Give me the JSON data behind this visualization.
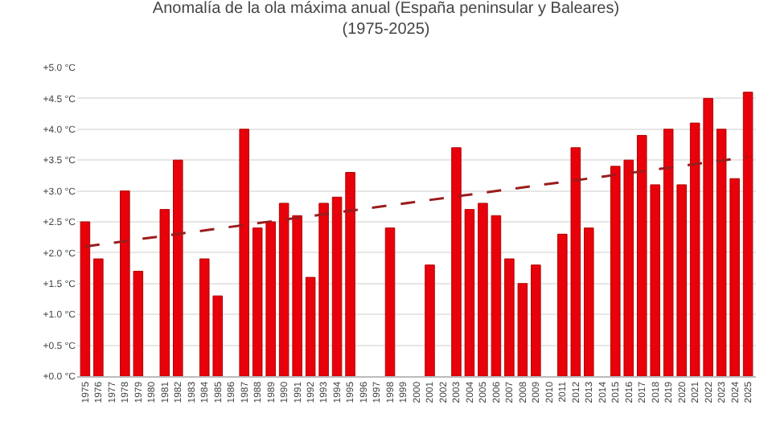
{
  "chart_data": {
    "type": "bar",
    "title": "Anomalía de la ola máxima anual (España peninsular y Baleares)\n(1975-2025)",
    "categories": [
      "1975",
      "1976",
      "1977",
      "1978",
      "1979",
      "1980",
      "1981",
      "1982",
      "1983",
      "1984",
      "1985",
      "1986",
      "1987",
      "1988",
      "1989",
      "1990",
      "1991",
      "1992",
      "1993",
      "1994",
      "1995",
      "1996",
      "1997",
      "1998",
      "1999",
      "2000",
      "2001",
      "2002",
      "2003",
      "2004",
      "2005",
      "2006",
      "2007",
      "2008",
      "2009",
      "2010",
      "2011",
      "2012",
      "2013",
      "2014",
      "2015",
      "2016",
      "2017",
      "2018",
      "2019",
      "2020",
      "2021",
      "2022",
      "2023",
      "2024",
      "2025"
    ],
    "series": [
      {
        "color": "#e8000b",
        "values": [
          2.5,
          1.9,
          null,
          3.0,
          1.7,
          null,
          2.7,
          3.5,
          null,
          1.9,
          1.3,
          null,
          4.0,
          2.4,
          2.5,
          2.8,
          2.6,
          1.6,
          2.8,
          2.9,
          3.3,
          null,
          null,
          2.4,
          null,
          null,
          1.8,
          null,
          3.7,
          2.7,
          2.8,
          2.6,
          1.9,
          1.5,
          1.8,
          null,
          2.3,
          3.7,
          2.4,
          null,
          3.4,
          3.5,
          3.9,
          3.1,
          4.0,
          3.1,
          4.1,
          4.5,
          4.0,
          3.2,
          4.6
        ]
      },
      {
        "type": "line",
        "color": "#9b1c1c",
        "line_style": "dashed",
        "marker": "none",
        "values": [
          2.1,
          null,
          null,
          null,
          null,
          null,
          null,
          null,
          null,
          null,
          null,
          null,
          null,
          null,
          null,
          null,
          null,
          null,
          null,
          null,
          null,
          null,
          null,
          null,
          null,
          null,
          null,
          null,
          null,
          null,
          null,
          null,
          null,
          null,
          null,
          null,
          null,
          null,
          null,
          null,
          null,
          null,
          null,
          null,
          null,
          null,
          null,
          null,
          null,
          null,
          3.55
        ]
      }
    ],
    "ylim": [
      0,
      5
    ],
    "yticks": [
      {
        "value": 0,
        "label": "+0.0 °C"
      },
      {
        "value": 0.5,
        "label": "+0.5 °C"
      },
      {
        "value": 1,
        "label": "+1.0 °C"
      },
      {
        "value": 1.5,
        "label": "+1.5 °C"
      },
      {
        "value": 2,
        "label": "+2.0 °C"
      },
      {
        "value": 2.5,
        "label": "+2.5 °C"
      },
      {
        "value": 3,
        "label": "+3.0 °C"
      },
      {
        "value": 3.5,
        "label": "+3.5 °C"
      },
      {
        "value": 4,
        "label": "+4.0 °C"
      },
      {
        "value": 4.5,
        "label": "+4.5 °C"
      },
      {
        "value": 5,
        "label": "+5.0 °C"
      }
    ],
    "grid": "y"
  }
}
